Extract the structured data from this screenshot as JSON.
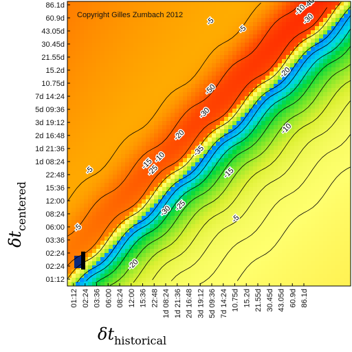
{
  "chart_data": {
    "type": "heatmap",
    "title": "",
    "copyright": "Copyright Gilles Zumbach 2012",
    "xlabel": {
      "symbol": "δt",
      "subscript": "historical"
    },
    "ylabel": {
      "symbol": "δt",
      "subscript": "centered"
    },
    "x_ticks": [
      "01:12",
      "02:24",
      "03:36",
      "06:00",
      "08:24",
      "12:00",
      "15:36",
      "22:48",
      "1d 08:24",
      "1d 21:36",
      "2d 16:48",
      "3d 19:12",
      "5d 09:36",
      "7d 14:24",
      "10.75d",
      "15.2d",
      "21.55d",
      "30.45d",
      "43.05d",
      "60.9d",
      "86.1d"
    ],
    "y_ticks": [
      "01:12",
      "02:24",
      "02:24",
      "03:36",
      "06:00",
      "08:24",
      "12:00",
      "15:36",
      "22:48",
      "1d 08:24",
      "1d 21:36",
      "2d 16:48",
      "3d 19:12",
      "5d 09:36",
      "7d 14:24",
      "10.75d",
      "15.2d",
      "21.55d",
      "30.45d",
      "43.05d",
      "60.9d",
      "86.1d"
    ],
    "contour_labels": [
      {
        "text": "-5",
        "x_index": 1.5,
        "y_index": 8.2
      },
      {
        "text": "-5",
        "x_index": 0.5,
        "y_index": 3.8
      },
      {
        "text": "-5",
        "x_index": 12.0,
        "y_index": 19.6
      },
      {
        "text": "-5",
        "x_index": 14.8,
        "y_index": 19.0
      },
      {
        "text": "-5",
        "x_index": 14.2,
        "y_index": 4.5
      },
      {
        "text": "-10",
        "x_index": 7.6,
        "y_index": 9.2
      },
      {
        "text": "-10",
        "x_index": 19.8,
        "y_index": 20.5
      },
      {
        "text": "-10",
        "x_index": 18.6,
        "y_index": 11.4
      },
      {
        "text": "-15",
        "x_index": 6.5,
        "y_index": 8.7
      },
      {
        "text": "-15",
        "x_index": 13.6,
        "y_index": 8.0
      },
      {
        "text": "-20",
        "x_index": 9.3,
        "y_index": 10.9
      },
      {
        "text": "-20",
        "x_index": 18.5,
        "y_index": 15.7
      },
      {
        "text": "-20",
        "x_index": 5.3,
        "y_index": 1.0
      },
      {
        "text": "-25",
        "x_index": 7.0,
        "y_index": 8.2
      },
      {
        "text": "-25",
        "x_index": 9.4,
        "y_index": 5.5
      },
      {
        "text": "-30",
        "x_index": 11.5,
        "y_index": 12.6
      },
      {
        "text": "-30",
        "x_index": 20.5,
        "y_index": 19.8
      },
      {
        "text": "-30",
        "x_index": 8.1,
        "y_index": 5.1
      },
      {
        "text": "-35",
        "x_index": 11.0,
        "y_index": 9.7
      },
      {
        "text": "-40",
        "x_index": 20.6,
        "y_index": 21.0
      },
      {
        "text": "-50",
        "x_index": 12.0,
        "y_index": 14.4
      }
    ],
    "colormap": [
      "#0050e6",
      "#00b4ff",
      "#00e6c8",
      "#00dc28",
      "#8ce628",
      "#e6f028",
      "#ffff64",
      "#ffc800",
      "#ff7800",
      "#ff3c00"
    ]
  }
}
